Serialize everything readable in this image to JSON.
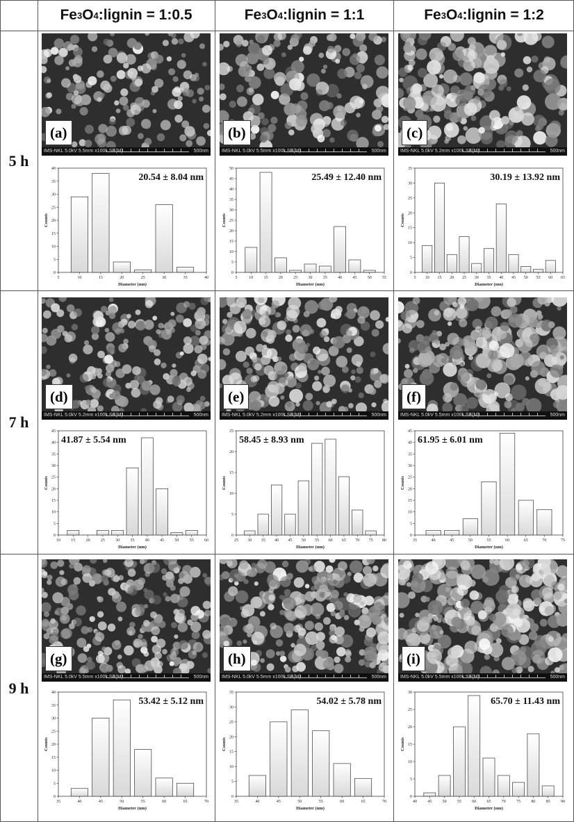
{
  "header": {
    "columns": [
      {
        "prefix": "Fe",
        "sub1": "3",
        "mid": "O",
        "sub2": "4",
        "suffix": ":lignin = 1:0.5"
      },
      {
        "prefix": "Fe",
        "sub1": "3",
        "mid": "O",
        "sub2": "4",
        "suffix": ":lignin = 1:1"
      },
      {
        "prefix": "Fe",
        "sub1": "3",
        "mid": "O",
        "sub2": "4",
        "suffix": ":lignin = 1:2"
      }
    ],
    "rows": [
      "5 h",
      "7 h",
      "9 h"
    ]
  },
  "sem_images": [
    {
      "label": "(a)",
      "info": "IMS-NKL 5.0kV 5.5mm x100k SE(M)",
      "scale": "500nm"
    },
    {
      "label": "(b)",
      "info": "IMS-NKL 5.0kV 5.5mm x100k SE(M)",
      "scale": "500nm"
    },
    {
      "label": "(c)",
      "info": "IMS-NKL 5.0kV 5.2mm x100k SE(M)",
      "scale": "500nm"
    },
    {
      "label": "(d)",
      "info": "IMS-NKL 5.0kV 5.2mm x100k SE(M)",
      "scale": "500nm"
    },
    {
      "label": "(e)",
      "info": "IMS-NKL 5.0kV 5.2mm x100k SE(M)",
      "scale": "500nm"
    },
    {
      "label": "(f)",
      "info": "IMS-NKL 5.0kV 5.5mm x100k SE(M)",
      "scale": "500nm"
    },
    {
      "label": "(g)",
      "info": "IMS-NKL 5.0kV 5.5mm x100k SE(M)",
      "scale": "500nm"
    },
    {
      "label": "(h)",
      "info": "IMS-NKL 5.0kV 5.5mm x100k SE(M)",
      "scale": "500nm"
    },
    {
      "label": "(i)",
      "info": "IMS-NKL 5.0kV 5.5mm x100k SE(M)",
      "scale": "500nm"
    }
  ],
  "chart_data": [
    {
      "type": "bar",
      "panel": "a",
      "stat": "20.54 ± 8.04 nm",
      "xlabel": "Diameter (nm)",
      "ylabel": "Counts",
      "xlim": [
        5,
        40
      ],
      "ylim": [
        0,
        40
      ],
      "xticks": [
        5,
        10,
        15,
        20,
        25,
        30,
        35,
        40
      ],
      "yticks": [
        0,
        5,
        10,
        15,
        20,
        25,
        30,
        35,
        40
      ],
      "bin_width": 5,
      "bins": [
        10,
        15,
        20,
        25,
        30,
        35
      ],
      "values": [
        29,
        38,
        4,
        1,
        26,
        2
      ]
    },
    {
      "type": "bar",
      "panel": "b",
      "stat": "25.49 ± 12.40 nm",
      "xlabel": "Diameter (nm)",
      "ylabel": "Counts",
      "xlim": [
        5,
        55
      ],
      "ylim": [
        0,
        50
      ],
      "xticks": [
        5,
        10,
        15,
        20,
        25,
        30,
        35,
        40,
        45,
        50,
        55
      ],
      "yticks": [
        0,
        5,
        10,
        15,
        20,
        25,
        30,
        35,
        40,
        45,
        50
      ],
      "bin_width": 5,
      "bins": [
        10,
        15,
        20,
        25,
        30,
        35,
        40,
        45,
        50
      ],
      "values": [
        12,
        48,
        7,
        1,
        4,
        3,
        22,
        6,
        1
      ]
    },
    {
      "type": "bar",
      "panel": "c",
      "stat": "30.19 ± 13.92 nm",
      "xlabel": "Diameter (nm)",
      "ylabel": "Counts",
      "xlim": [
        5,
        65
      ],
      "ylim": [
        0,
        35
      ],
      "xticks": [
        5,
        10,
        15,
        20,
        25,
        30,
        35,
        40,
        45,
        50,
        55,
        60,
        65
      ],
      "yticks": [
        0,
        5,
        10,
        15,
        20,
        25,
        30,
        35
      ],
      "bin_width": 5,
      "bins": [
        10,
        15,
        20,
        25,
        30,
        35,
        40,
        45,
        50,
        55,
        60
      ],
      "values": [
        9,
        30,
        6,
        12,
        3,
        8,
        23,
        6,
        2,
        1,
        4
      ]
    },
    {
      "type": "bar",
      "panel": "d",
      "stat": "41.87 ± 5.54 nm",
      "xlabel": "Diameter (nm)",
      "ylabel": "Counts",
      "xlim": [
        10,
        60
      ],
      "ylim": [
        0,
        45
      ],
      "xticks": [
        10,
        15,
        20,
        25,
        30,
        35,
        40,
        45,
        50,
        55,
        60
      ],
      "yticks": [
        0,
        5,
        10,
        15,
        20,
        25,
        30,
        35,
        40,
        45
      ],
      "bin_width": 5,
      "bins": [
        15,
        25,
        30,
        35,
        40,
        45,
        50,
        55
      ],
      "values": [
        2,
        2,
        2,
        29,
        42,
        20,
        1,
        2
      ]
    },
    {
      "type": "bar",
      "panel": "e",
      "stat": "58.45 ± 8.93 nm",
      "xlabel": "Diameter (nm)",
      "ylabel": "Counts",
      "xlim": [
        25,
        80
      ],
      "ylim": [
        0,
        25
      ],
      "xticks": [
        25,
        30,
        35,
        40,
        45,
        50,
        55,
        60,
        65,
        70,
        75,
        80
      ],
      "yticks": [
        0,
        5,
        10,
        15,
        20,
        25
      ],
      "bin_width": 5,
      "bins": [
        30,
        35,
        40,
        45,
        50,
        55,
        60,
        65,
        70,
        75
      ],
      "values": [
        1,
        5,
        12,
        5,
        13,
        22,
        23,
        14,
        6,
        1
      ]
    },
    {
      "type": "bar",
      "panel": "f",
      "stat": "61.95 ± 6.01 nm",
      "xlabel": "Diameter (nm)",
      "ylabel": "Counts",
      "xlim": [
        35,
        75
      ],
      "ylim": [
        0,
        45
      ],
      "xticks": [
        35,
        40,
        45,
        50,
        55,
        60,
        65,
        70,
        75
      ],
      "yticks": [
        0,
        5,
        10,
        15,
        20,
        25,
        30,
        35,
        40,
        45
      ],
      "bin_width": 5,
      "bins": [
        40,
        45,
        50,
        55,
        60,
        65,
        70
      ],
      "values": [
        2,
        2,
        7,
        23,
        44,
        15,
        11
      ]
    },
    {
      "type": "bar",
      "panel": "g",
      "stat": "53.42 ± 5.12 nm",
      "xlabel": "Diameter (nm)",
      "ylabel": "Counts",
      "xlim": [
        35,
        70
      ],
      "ylim": [
        0,
        40
      ],
      "xticks": [
        35,
        40,
        45,
        50,
        55,
        60,
        65,
        70
      ],
      "yticks": [
        0,
        5,
        10,
        15,
        20,
        25,
        30,
        35,
        40
      ],
      "bin_width": 5,
      "bins": [
        40,
        45,
        50,
        55,
        60,
        65
      ],
      "values": [
        3,
        30,
        37,
        18,
        7,
        5
      ]
    },
    {
      "type": "bar",
      "panel": "h",
      "stat": "54.02 ± 5.78 nm",
      "xlabel": "Diameter (nm)",
      "ylabel": "Counts",
      "xlim": [
        35,
        70
      ],
      "ylim": [
        0,
        35
      ],
      "xticks": [
        35,
        40,
        45,
        50,
        55,
        60,
        65,
        70
      ],
      "yticks": [
        0,
        5,
        10,
        15,
        20,
        25,
        30,
        35
      ],
      "bin_width": 5,
      "bins": [
        40,
        45,
        50,
        55,
        60,
        65
      ],
      "values": [
        7,
        25,
        29,
        22,
        11,
        6
      ]
    },
    {
      "type": "bar",
      "panel": "i",
      "stat": "65.70 ± 11.43 nm",
      "xlabel": "Diameter (nm)",
      "ylabel": "Counts",
      "xlim": [
        40,
        90
      ],
      "ylim": [
        0,
        30
      ],
      "xticks": [
        40,
        45,
        50,
        55,
        60,
        65,
        70,
        75,
        80,
        85,
        90
      ],
      "yticks": [
        0,
        5,
        10,
        15,
        20,
        25,
        30
      ],
      "bin_width": 5,
      "bins": [
        45,
        50,
        55,
        60,
        65,
        70,
        75,
        80,
        85
      ],
      "values": [
        1,
        6,
        20,
        29,
        11,
        6,
        4,
        18,
        3
      ]
    }
  ]
}
